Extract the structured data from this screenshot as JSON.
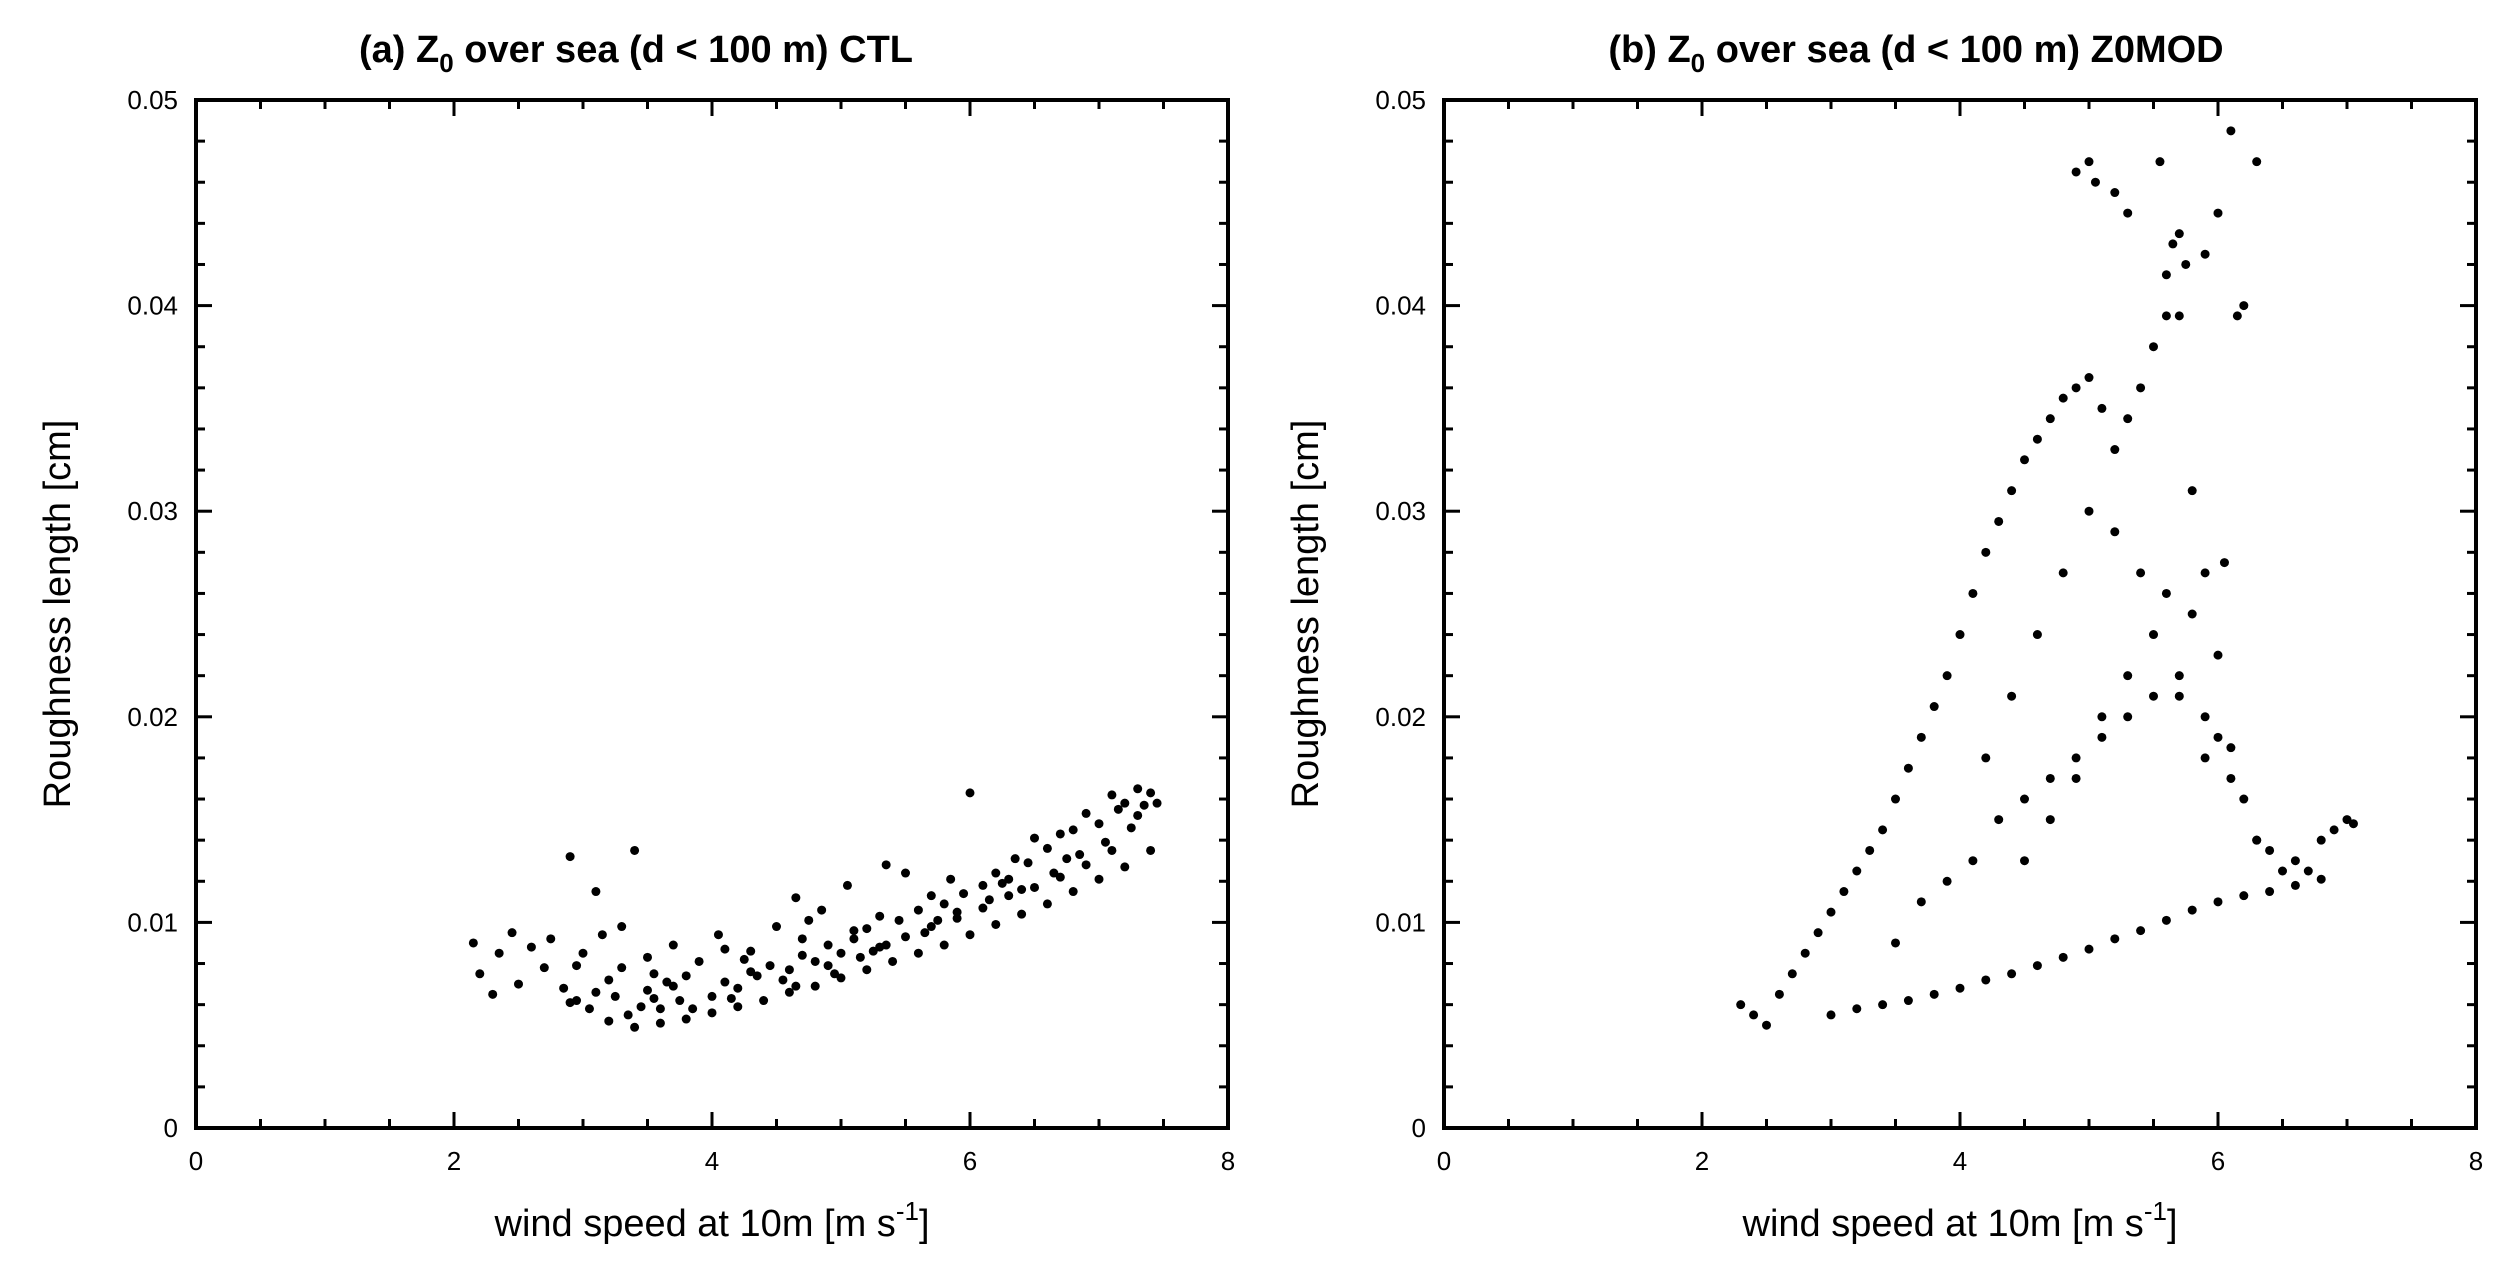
{
  "chart_data": [
    {
      "type": "scatter",
      "panel": "a",
      "title": {
        "prefix": "(a) Z",
        "sub": "0",
        "suffix": " over sea (d < 100 m) CTL"
      },
      "xlabel": {
        "main": "wind speed at 10m [m s",
        "sup": "-1",
        "end": "]"
      },
      "ylabel": "Roughness length [cm]",
      "xlim": [
        0,
        8
      ],
      "ylim": [
        0,
        0.05
      ],
      "xticks": [
        0,
        2,
        4,
        6,
        8
      ],
      "xtick_labels": [
        "0",
        "2",
        "4",
        "6",
        "8"
      ],
      "yticks": [
        0,
        0.01,
        0.02,
        0.03,
        0.04,
        0.05
      ],
      "ytick_labels": [
        "0",
        "0.01",
        "0.02",
        "0.03",
        "0.04",
        "0.05"
      ],
      "series": [
        {
          "name": "CTL",
          "color": "#000000",
          "x": [
            2.15,
            2.2,
            2.3,
            2.35,
            2.45,
            2.5,
            2.6,
            2.7,
            2.75,
            2.85,
            2.9,
            2.95,
            3.0,
            3.05,
            3.1,
            3.2,
            3.25,
            3.3,
            3.35,
            3.4,
            3.5,
            3.55,
            3.6,
            3.7,
            3.75,
            3.8,
            3.9,
            4.0,
            4.05,
            4.1,
            4.2,
            4.3,
            4.35,
            4.45,
            4.5,
            4.6,
            4.65,
            4.7,
            4.8,
            4.85,
            4.9,
            5.0,
            5.05,
            5.1,
            5.2,
            5.3,
            5.35,
            5.45,
            5.5,
            5.6,
            5.7,
            5.8,
            5.85,
            5.95,
            6.0,
            6.1,
            6.2,
            6.3,
            6.35,
            6.45,
            6.5,
            6.6,
            6.7,
            6.8,
            6.9,
            7.0,
            7.1,
            7.2,
            7.3,
            7.4,
            7.45,
            3.2,
            3.4,
            3.6,
            3.8,
            4.0,
            4.2,
            4.4,
            4.6,
            4.8,
            5.0,
            5.2,
            5.4,
            5.6,
            5.8,
            6.0,
            6.2,
            6.4,
            6.6,
            6.8,
            7.0,
            7.2,
            7.4,
            2.9,
            3.3,
            3.5,
            3.7,
            4.1,
            4.3,
            4.7,
            4.9,
            5.1,
            5.3,
            5.5,
            5.7,
            5.9,
            6.1,
            6.3,
            6.5,
            6.7,
            6.9,
            7.1,
            7.3,
            3.1,
            3.45,
            3.65,
            3.85,
            4.15,
            4.55,
            4.75,
            4.95,
            5.15,
            5.35,
            5.65,
            5.9,
            6.15,
            6.4,
            6.65,
            6.85,
            7.05,
            7.25,
            7.35,
            2.95,
            3.15,
            3.55,
            4.25,
            4.65,
            5.25,
            5.75,
            6.25,
            6.75,
            7.15
          ],
          "y": [
            0.009,
            0.0075,
            0.0065,
            0.0085,
            0.0095,
            0.007,
            0.0088,
            0.0078,
            0.0092,
            0.0068,
            0.0132,
            0.0062,
            0.0085,
            0.0058,
            0.0115,
            0.0072,
            0.0064,
            0.0098,
            0.0055,
            0.0135,
            0.0067,
            0.0075,
            0.0058,
            0.0089,
            0.0062,
            0.0074,
            0.0081,
            0.0064,
            0.0094,
            0.0071,
            0.0068,
            0.0086,
            0.0074,
            0.0079,
            0.0098,
            0.0077,
            0.0112,
            0.0084,
            0.0081,
            0.0106,
            0.0089,
            0.0085,
            0.0118,
            0.0092,
            0.0097,
            0.0103,
            0.0128,
            0.0101,
            0.0124,
            0.0106,
            0.0113,
            0.0109,
            0.0121,
            0.0114,
            0.0163,
            0.0118,
            0.0124,
            0.0121,
            0.0131,
            0.0129,
            0.0141,
            0.0136,
            0.0143,
            0.0145,
            0.0153,
            0.0148,
            0.0162,
            0.0158,
            0.0165,
            0.0163,
            0.0158,
            0.0052,
            0.0049,
            0.0051,
            0.0053,
            0.0056,
            0.0059,
            0.0062,
            0.0066,
            0.0069,
            0.0073,
            0.0077,
            0.0081,
            0.0085,
            0.0089,
            0.0094,
            0.0099,
            0.0104,
            0.0109,
            0.0115,
            0.0121,
            0.0127,
            0.0135,
            0.0061,
            0.0078,
            0.0083,
            0.0069,
            0.0087,
            0.0076,
            0.0092,
            0.0079,
            0.0096,
            0.0088,
            0.0093,
            0.0098,
            0.0102,
            0.0107,
            0.0113,
            0.0117,
            0.0122,
            0.0128,
            0.0135,
            0.0152,
            0.0066,
            0.0059,
            0.0071,
            0.0058,
            0.0063,
            0.0072,
            0.0101,
            0.0075,
            0.0083,
            0.0089,
            0.0095,
            0.0105,
            0.0111,
            0.0116,
            0.0124,
            0.0133,
            0.0139,
            0.0146,
            0.0157,
            0.0079,
            0.0094,
            0.0063,
            0.0082,
            0.0069,
            0.0086,
            0.0101,
            0.0119,
            0.0131,
            0.0155
          ]
        }
      ]
    },
    {
      "type": "scatter",
      "panel": "b",
      "title": {
        "prefix": "(b) Z",
        "sub": "0",
        "suffix": " over sea (d < 100 m) Z0MOD"
      },
      "xlabel": {
        "main": "wind speed at 10m [m s",
        "sup": "-1",
        "end": "]"
      },
      "ylabel": "Roughness length [cm]",
      "xlim": [
        0,
        8
      ],
      "ylim": [
        0,
        0.05
      ],
      "xticks": [
        0,
        2,
        4,
        6,
        8
      ],
      "xtick_labels": [
        "0",
        "2",
        "4",
        "6",
        "8"
      ],
      "yticks": [
        0,
        0.01,
        0.02,
        0.03,
        0.04,
        0.05
      ],
      "ytick_labels": [
        "0",
        "0.01",
        "0.02",
        "0.03",
        "0.04",
        "0.05"
      ],
      "series": [
        {
          "name": "Z0MOD",
          "color": "#000000",
          "x": [
            2.3,
            2.4,
            2.5,
            2.6,
            2.7,
            2.8,
            2.9,
            3.0,
            3.1,
            3.2,
            3.3,
            3.4,
            3.5,
            3.6,
            3.7,
            3.8,
            3.9,
            4.0,
            4.1,
            4.2,
            4.3,
            4.4,
            4.5,
            4.6,
            4.7,
            4.8,
            4.9,
            5.0,
            5.1,
            5.2,
            5.3,
            5.4,
            5.5,
            5.6,
            5.7,
            5.8,
            5.9,
            6.0,
            6.1,
            6.2,
            6.3,
            6.4,
            6.5,
            6.6,
            6.7,
            6.8,
            6.9,
            7.0,
            7.05,
            3.0,
            3.2,
            3.4,
            3.6,
            3.8,
            4.0,
            4.2,
            4.4,
            4.6,
            4.8,
            5.0,
            5.2,
            5.4,
            5.6,
            5.8,
            6.0,
            6.2,
            6.4,
            6.6,
            6.8,
            3.5,
            3.7,
            3.9,
            4.1,
            4.3,
            4.5,
            4.7,
            4.9,
            5.1,
            5.3,
            5.5,
            5.7,
            5.9,
            6.1,
            6.3,
            4.2,
            4.4,
            4.6,
            4.8,
            5.0,
            5.2,
            5.4,
            5.6,
            5.8,
            6.0,
            4.5,
            4.7,
            4.9,
            5.1,
            5.3,
            5.5,
            5.7,
            5.9,
            4.9,
            5.0,
            5.05,
            5.2,
            5.3,
            5.55,
            5.7,
            5.75,
            5.9,
            6.0,
            6.1,
            6.15,
            6.2,
            6.3,
            6.05,
            5.6,
            5.65
          ],
          "y": [
            0.006,
            0.0055,
            0.005,
            0.0065,
            0.0075,
            0.0085,
            0.0095,
            0.0105,
            0.0115,
            0.0125,
            0.0135,
            0.0145,
            0.016,
            0.0175,
            0.019,
            0.0205,
            0.022,
            0.024,
            0.026,
            0.028,
            0.0295,
            0.031,
            0.0325,
            0.0335,
            0.0345,
            0.0355,
            0.036,
            0.0365,
            0.035,
            0.033,
            0.0345,
            0.036,
            0.038,
            0.0395,
            0.0395,
            0.031,
            0.027,
            0.023,
            0.0185,
            0.016,
            0.014,
            0.0135,
            0.0125,
            0.013,
            0.0125,
            0.014,
            0.0145,
            0.015,
            0.0148,
            0.0055,
            0.0058,
            0.006,
            0.0062,
            0.0065,
            0.0068,
            0.0072,
            0.0075,
            0.0079,
            0.0083,
            0.0087,
            0.0092,
            0.0096,
            0.0101,
            0.0106,
            0.011,
            0.0113,
            0.0115,
            0.0118,
            0.0121,
            0.009,
            0.011,
            0.012,
            0.013,
            0.015,
            0.016,
            0.017,
            0.018,
            0.019,
            0.02,
            0.021,
            0.022,
            0.02,
            0.017,
            0.014,
            0.018,
            0.021,
            0.024,
            0.027,
            0.03,
            0.029,
            0.027,
            0.026,
            0.025,
            0.019,
            0.013,
            0.015,
            0.017,
            0.02,
            0.022,
            0.024,
            0.021,
            0.018,
            0.0465,
            0.047,
            0.046,
            0.0455,
            0.0445,
            0.047,
            0.0435,
            0.042,
            0.0425,
            0.0445,
            0.0485,
            0.0395,
            0.04,
            0.047,
            0.0275,
            0.0415,
            0.043
          ]
        }
      ]
    }
  ]
}
